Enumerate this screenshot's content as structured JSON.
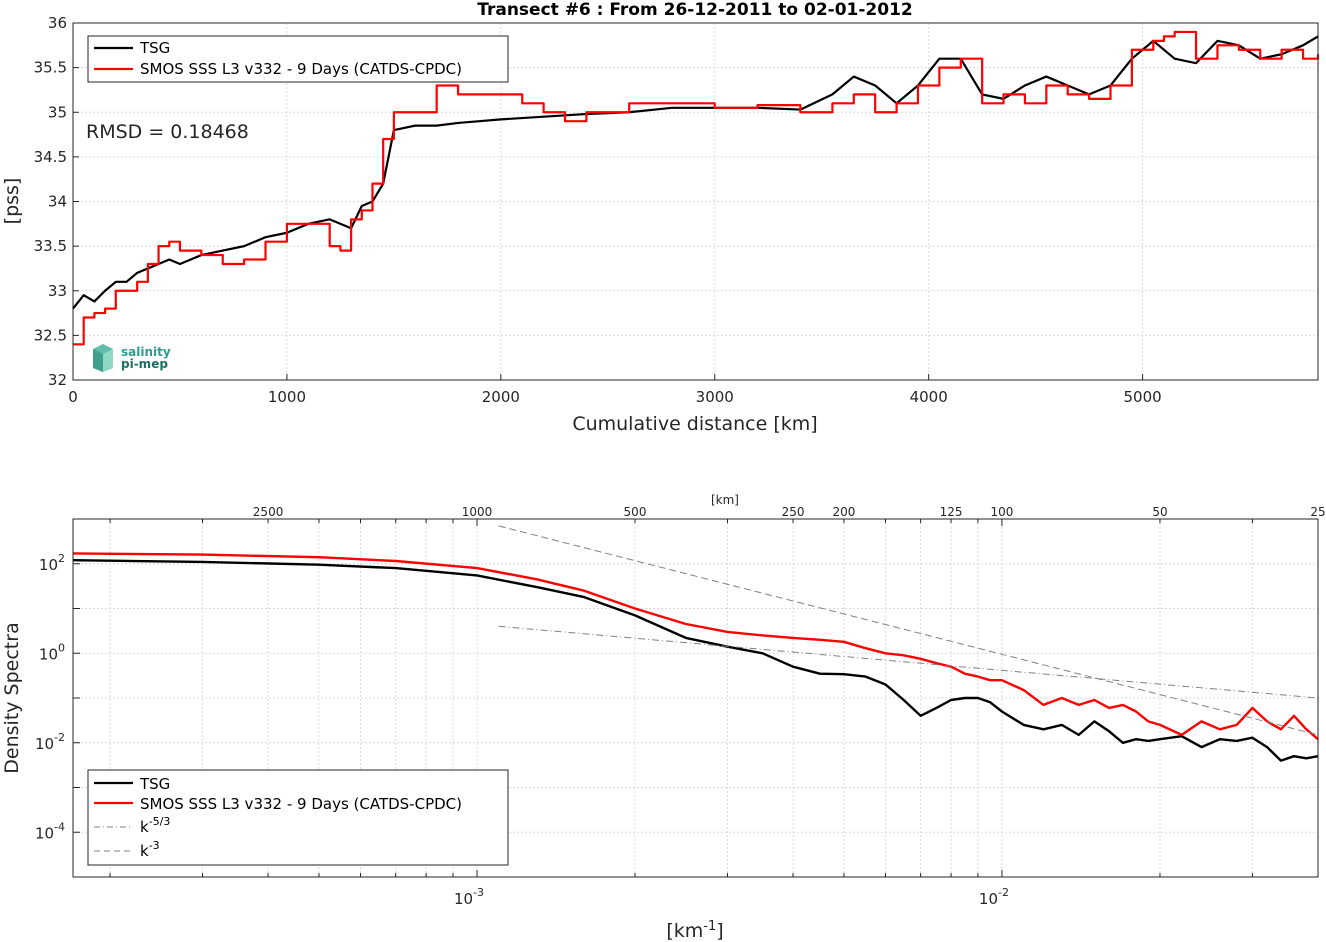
{
  "chart_data": [
    {
      "type": "line",
      "title": "Transect #6 : From 26-12-2011 to 02-01-2012",
      "xlabel": "Cumulative distance [km]",
      "ylabel": "[pss]",
      "xlim": [
        0,
        5820
      ],
      "ylim": [
        32,
        36
      ],
      "xticks": [
        "0",
        "1000",
        "2000",
        "3000",
        "4000",
        "5000"
      ],
      "yticks": [
        "32",
        "32.5",
        "33",
        "33.5",
        "34",
        "34.5",
        "35",
        "35.5",
        "36"
      ],
      "grid": true,
      "legend_position": "top-left",
      "annotation": "RMSD = 0.18468",
      "logo": "salinity pi-mep",
      "series": [
        {
          "name": "TSG",
          "color": "#000000",
          "x": [
            0,
            50,
            100,
            150,
            200,
            250,
            300,
            350,
            400,
            450,
            500,
            600,
            700,
            800,
            900,
            1000,
            1100,
            1200,
            1300,
            1350,
            1400,
            1450,
            1500,
            1600,
            1700,
            1800,
            1900,
            2000,
            2200,
            2400,
            2600,
            2800,
            3000,
            3200,
            3400,
            3550,
            3650,
            3750,
            3850,
            3950,
            4050,
            4150,
            4250,
            4350,
            4450,
            4550,
            4650,
            4750,
            4850,
            4950,
            5050,
            5150,
            5250,
            5350,
            5450,
            5550,
            5650,
            5750,
            5820
          ],
          "values": [
            32.8,
            32.95,
            32.88,
            33.0,
            33.1,
            33.1,
            33.2,
            33.25,
            33.3,
            33.35,
            33.3,
            33.4,
            33.45,
            33.5,
            33.6,
            33.65,
            33.75,
            33.8,
            33.7,
            33.95,
            34.0,
            34.2,
            34.8,
            34.85,
            34.85,
            34.88,
            34.9,
            34.92,
            34.95,
            34.98,
            35.0,
            35.05,
            35.05,
            35.05,
            35.03,
            35.2,
            35.4,
            35.3,
            35.1,
            35.3,
            35.6,
            35.6,
            35.2,
            35.15,
            35.3,
            35.4,
            35.3,
            35.2,
            35.3,
            35.6,
            35.8,
            35.6,
            35.55,
            35.8,
            35.75,
            35.6,
            35.65,
            35.75,
            35.85
          ]
        },
        {
          "name": "SMOS SSS L3 v332 - 9 Days (CATDS-CPDC)",
          "color": "#ff0000",
          "x": [
            0,
            50,
            100,
            150,
            200,
            250,
            300,
            350,
            400,
            450,
            500,
            600,
            700,
            800,
            900,
            1000,
            1100,
            1200,
            1250,
            1300,
            1350,
            1400,
            1450,
            1500,
            1600,
            1700,
            1800,
            1900,
            2000,
            2100,
            2200,
            2300,
            2400,
            2500,
            2600,
            2700,
            2800,
            3000,
            3200,
            3400,
            3550,
            3650,
            3750,
            3850,
            3950,
            4050,
            4150,
            4250,
            4350,
            4450,
            4550,
            4650,
            4750,
            4850,
            4950,
            5050,
            5100,
            5150,
            5250,
            5350,
            5450,
            5550,
            5650,
            5750,
            5820
          ],
          "values": [
            32.4,
            32.7,
            32.75,
            32.8,
            33.0,
            33.0,
            33.1,
            33.3,
            33.5,
            33.55,
            33.45,
            33.4,
            33.3,
            33.35,
            33.55,
            33.75,
            33.75,
            33.5,
            33.45,
            33.8,
            33.9,
            34.2,
            34.7,
            35.0,
            35.0,
            35.3,
            35.2,
            35.2,
            35.2,
            35.1,
            35.0,
            34.9,
            35.0,
            35.0,
            35.1,
            35.1,
            35.1,
            35.05,
            35.08,
            35.0,
            35.1,
            35.2,
            35.0,
            35.1,
            35.3,
            35.5,
            35.6,
            35.1,
            35.2,
            35.1,
            35.3,
            35.2,
            35.15,
            35.3,
            35.7,
            35.8,
            35.85,
            35.9,
            35.6,
            35.75,
            35.7,
            35.6,
            35.7,
            35.6,
            35.65
          ]
        }
      ]
    },
    {
      "type": "line",
      "title": "",
      "xlabel": "[km-1]",
      "xlabel_base": "[km",
      "xlabel_exp": "-1",
      "xlabel_tail": "]",
      "ylabel": "Density Spectra",
      "xscale": "log",
      "yscale": "log",
      "xlim": [
        0.00017,
        0.04
      ],
      "ylim": [
        1e-05,
        1000
      ],
      "xticks": [
        {
          "base": "10",
          "exp": "-3"
        },
        {
          "base": "10",
          "exp": "-2"
        }
      ],
      "yticks": [
        {
          "base": "10",
          "exp": "-4"
        },
        {
          "base": "10",
          "exp": "-2"
        },
        {
          "base": "10",
          "exp": "0"
        },
        {
          "base": "10",
          "exp": "2"
        }
      ],
      "top_axis_label": "[km]",
      "top_ticks": [
        "2500",
        "1000",
        "500",
        "250",
        "200",
        "125",
        "100",
        "50",
        "25"
      ],
      "grid": true,
      "legend_position": "bottom-left",
      "series": [
        {
          "name": "TSG",
          "color": "#000000",
          "x": [
            0.00017,
            0.0003,
            0.0005,
            0.0007,
            0.001,
            0.0013,
            0.0016,
            0.002,
            0.0025,
            0.003,
            0.0035,
            0.004,
            0.0045,
            0.005,
            0.0055,
            0.006,
            0.0065,
            0.007,
            0.0075,
            0.008,
            0.0085,
            0.009,
            0.0095,
            0.01,
            0.011,
            0.012,
            0.013,
            0.014,
            0.015,
            0.016,
            0.017,
            0.018,
            0.019,
            0.02,
            0.022,
            0.024,
            0.026,
            0.028,
            0.03,
            0.032,
            0.034,
            0.036,
            0.038,
            0.04
          ],
          "values": [
            120,
            110,
            95,
            80,
            55,
            30,
            18,
            7,
            2.2,
            1.4,
            1.0,
            0.5,
            0.35,
            0.34,
            0.3,
            0.2,
            0.09,
            0.04,
            0.06,
            0.09,
            0.1,
            0.1,
            0.08,
            0.05,
            0.025,
            0.02,
            0.025,
            0.015,
            0.03,
            0.018,
            0.01,
            0.012,
            0.011,
            0.012,
            0.014,
            0.008,
            0.012,
            0.011,
            0.013,
            0.008,
            0.004,
            0.005,
            0.0045,
            0.005
          ]
        },
        {
          "name": "SMOS SSS L3 v332 - 9 Days (CATDS-CPDC)",
          "color": "#ff0000",
          "x": [
            0.00017,
            0.0003,
            0.0005,
            0.0007,
            0.001,
            0.0013,
            0.0016,
            0.002,
            0.0025,
            0.003,
            0.0035,
            0.004,
            0.0045,
            0.005,
            0.0055,
            0.006,
            0.0065,
            0.007,
            0.0075,
            0.008,
            0.0085,
            0.009,
            0.0095,
            0.01,
            0.011,
            0.012,
            0.013,
            0.014,
            0.015,
            0.016,
            0.017,
            0.018,
            0.019,
            0.02,
            0.022,
            0.024,
            0.026,
            0.028,
            0.03,
            0.032,
            0.034,
            0.036,
            0.038,
            0.04
          ],
          "values": [
            170,
            160,
            140,
            115,
            80,
            45,
            25,
            10,
            4.5,
            3.0,
            2.5,
            2.2,
            2.0,
            1.8,
            1.3,
            1.0,
            0.9,
            0.75,
            0.6,
            0.5,
            0.35,
            0.3,
            0.25,
            0.25,
            0.15,
            0.07,
            0.1,
            0.07,
            0.09,
            0.06,
            0.07,
            0.05,
            0.03,
            0.025,
            0.015,
            0.03,
            0.02,
            0.025,
            0.06,
            0.03,
            0.02,
            0.04,
            0.02,
            0.012
          ]
        },
        {
          "name": "k-5/3",
          "name_base": "k",
          "name_exp": "-5/3",
          "color": "#808080",
          "dash": "dashdot",
          "x": [
            0.0011,
            0.04
          ],
          "values": [
            4.0,
            0.1
          ]
        },
        {
          "name": "k-3",
          "name_base": "k",
          "name_exp": "-3",
          "color": "#808080",
          "dash": "dashed",
          "x": [
            0.0011,
            0.04
          ],
          "values": [
            700,
            0.015
          ]
        }
      ]
    }
  ]
}
